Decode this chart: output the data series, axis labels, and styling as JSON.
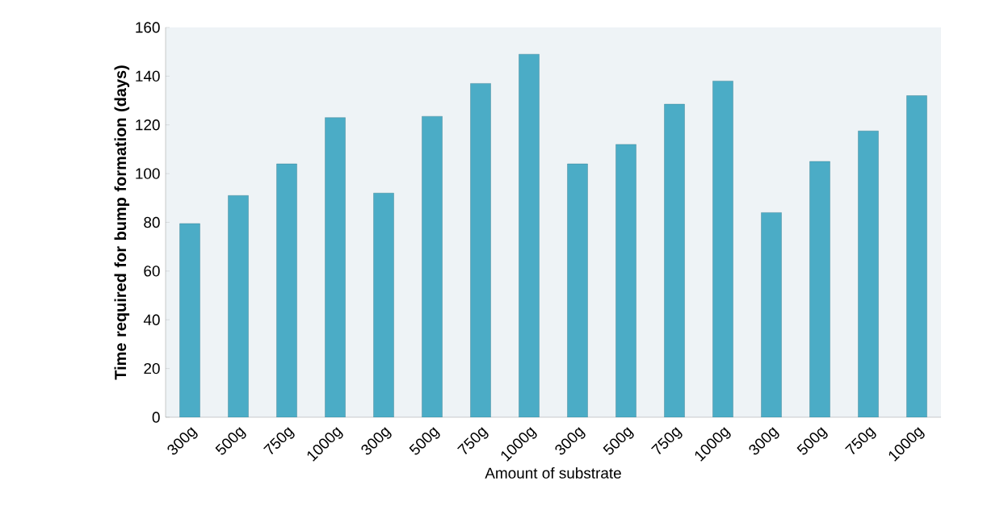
{
  "chart_data": {
    "type": "bar",
    "xlabel": "Amount of substrate",
    "ylabel": "Time required for bump formation (days)",
    "categories": [
      "300g",
      "500g",
      "750g",
      "1000g",
      "300g",
      "500g",
      "750g",
      "1000g",
      "300g",
      "500g",
      "750g",
      "1000g",
      "300g",
      "500g",
      "750g",
      "1000g"
    ],
    "values": [
      79.5,
      91,
      104,
      123,
      92,
      123.5,
      137,
      149,
      104,
      112,
      128.5,
      138,
      84,
      105,
      117.5,
      132
    ],
    "color": "#4bacc6",
    "ylim": [
      0,
      160
    ],
    "yticks": [
      0,
      20,
      40,
      60,
      80,
      100,
      120,
      140,
      160
    ],
    "grid": false
  }
}
